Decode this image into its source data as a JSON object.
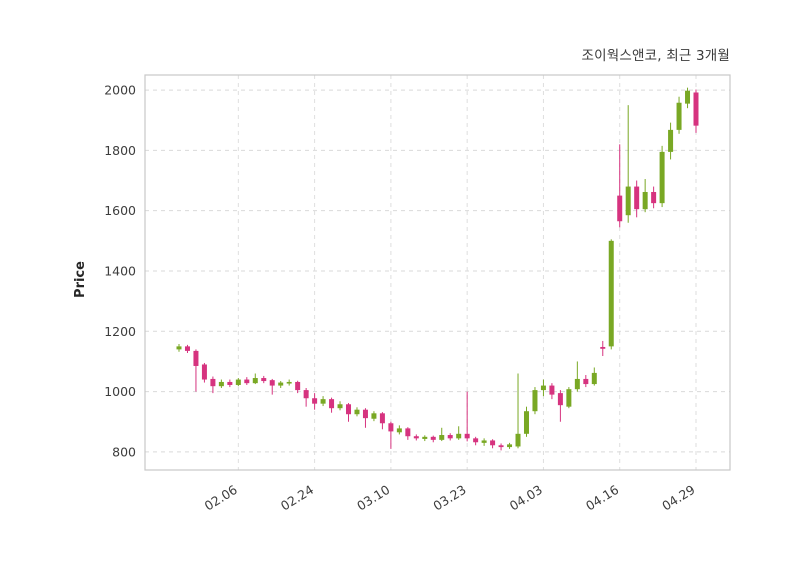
{
  "header": {
    "title": "조이웍스앤코, 최근 3개월"
  },
  "chart_data": {
    "type": "candlestick",
    "title": "조이웍스앤코, 최근 3개월",
    "ylabel": "Price",
    "ylim": [
      740,
      2050
    ],
    "yticks": [
      800,
      1000,
      1200,
      1400,
      1600,
      1800,
      2000
    ],
    "xticks": [
      {
        "index": 7,
        "label": "02.06"
      },
      {
        "index": 16,
        "label": "02.24"
      },
      {
        "index": 25,
        "label": "03.10"
      },
      {
        "index": 34,
        "label": "03.23"
      },
      {
        "index": 43,
        "label": "04.03"
      },
      {
        "index": 52,
        "label": "04.16"
      },
      {
        "index": 61,
        "label": "04.29"
      }
    ],
    "up_color": "#79a824",
    "down_color": "#d6337f",
    "grid": "dashed",
    "candles": [
      [
        1140,
        1158,
        1132,
        1150
      ],
      [
        1150,
        1155,
        1128,
        1135
      ],
      [
        1135,
        1140,
        1000,
        1085
      ],
      [
        1090,
        1095,
        1030,
        1040
      ],
      [
        1042,
        1050,
        995,
        1018
      ],
      [
        1018,
        1040,
        1012,
        1032
      ],
      [
        1032,
        1040,
        1015,
        1022
      ],
      [
        1022,
        1045,
        1018,
        1040
      ],
      [
        1040,
        1048,
        1022,
        1028
      ],
      [
        1028,
        1060,
        1025,
        1045
      ],
      [
        1045,
        1052,
        1028,
        1035
      ],
      [
        1038,
        1042,
        990,
        1020
      ],
      [
        1020,
        1035,
        1012,
        1030
      ],
      [
        1028,
        1040,
        1020,
        1032
      ],
      [
        1032,
        1036,
        995,
        1005
      ],
      [
        1005,
        1012,
        950,
        978
      ],
      [
        978,
        995,
        940,
        960
      ],
      [
        960,
        985,
        952,
        975
      ],
      [
        975,
        980,
        930,
        945
      ],
      [
        945,
        968,
        938,
        958
      ],
      [
        958,
        962,
        900,
        925
      ],
      [
        925,
        948,
        918,
        940
      ],
      [
        940,
        945,
        880,
        912
      ],
      [
        910,
        935,
        902,
        928
      ],
      [
        928,
        932,
        875,
        895
      ],
      [
        895,
        900,
        810,
        868
      ],
      [
        865,
        888,
        858,
        878
      ],
      [
        878,
        882,
        840,
        852
      ],
      [
        852,
        858,
        838,
        845
      ],
      [
        843,
        855,
        836,
        850
      ],
      [
        850,
        854,
        832,
        840
      ],
      [
        840,
        880,
        836,
        856
      ],
      [
        856,
        862,
        838,
        845
      ],
      [
        845,
        885,
        840,
        860
      ],
      [
        860,
        1000,
        835,
        845
      ],
      [
        845,
        850,
        822,
        832
      ],
      [
        830,
        845,
        820,
        838
      ],
      [
        838,
        842,
        812,
        822
      ],
      [
        822,
        828,
        805,
        816
      ],
      [
        816,
        830,
        810,
        825
      ],
      [
        818,
        1060,
        812,
        860
      ],
      [
        860,
        950,
        850,
        935
      ],
      [
        935,
        1015,
        925,
        1005
      ],
      [
        1005,
        1040,
        985,
        1020
      ],
      [
        1020,
        1028,
        975,
        990
      ],
      [
        995,
        1005,
        900,
        955
      ],
      [
        950,
        1015,
        945,
        1008
      ],
      [
        1008,
        1100,
        1000,
        1042
      ],
      [
        1042,
        1055,
        1015,
        1025
      ],
      [
        1025,
        1080,
        1020,
        1062
      ],
      [
        1148,
        1168,
        1118,
        1142
      ],
      [
        1150,
        1505,
        1140,
        1500
      ],
      [
        1650,
        1820,
        1545,
        1565
      ],
      [
        1585,
        1950,
        1560,
        1680
      ],
      [
        1680,
        1700,
        1578,
        1605
      ],
      [
        1605,
        1705,
        1595,
        1662
      ],
      [
        1662,
        1680,
        1608,
        1625
      ],
      [
        1625,
        1815,
        1612,
        1795
      ],
      [
        1795,
        1892,
        1770,
        1868
      ],
      [
        1868,
        1978,
        1855,
        1958
      ],
      [
        1955,
        2008,
        1940,
        1998
      ],
      [
        1992,
        2002,
        1858,
        1882
      ]
    ]
  }
}
